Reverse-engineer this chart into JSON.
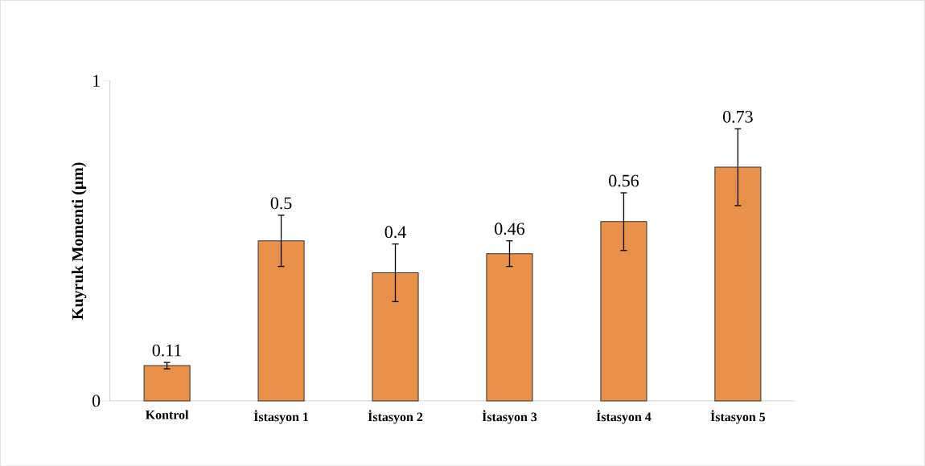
{
  "chart_data": {
    "type": "bar",
    "ylabel": "Kuyruk  Momenti  (µm)",
    "categories": [
      "Kontrol",
      "İstasyon 1",
      "İstasyon 2",
      "İstasyon 3",
      "İstasyon 4",
      "İstasyon 5"
    ],
    "values": [
      0.11,
      0.5,
      0.4,
      0.46,
      0.56,
      0.73
    ],
    "errors": [
      0.01,
      0.08,
      0.09,
      0.04,
      0.09,
      0.12
    ],
    "value_labels": [
      "0.11",
      "0.5",
      "0.4",
      "0.46",
      "0.56",
      "0.73"
    ],
    "color": "#e8914a",
    "ylim": [
      0,
      1
    ],
    "yticks": [
      0,
      1
    ],
    "grid": false
  }
}
